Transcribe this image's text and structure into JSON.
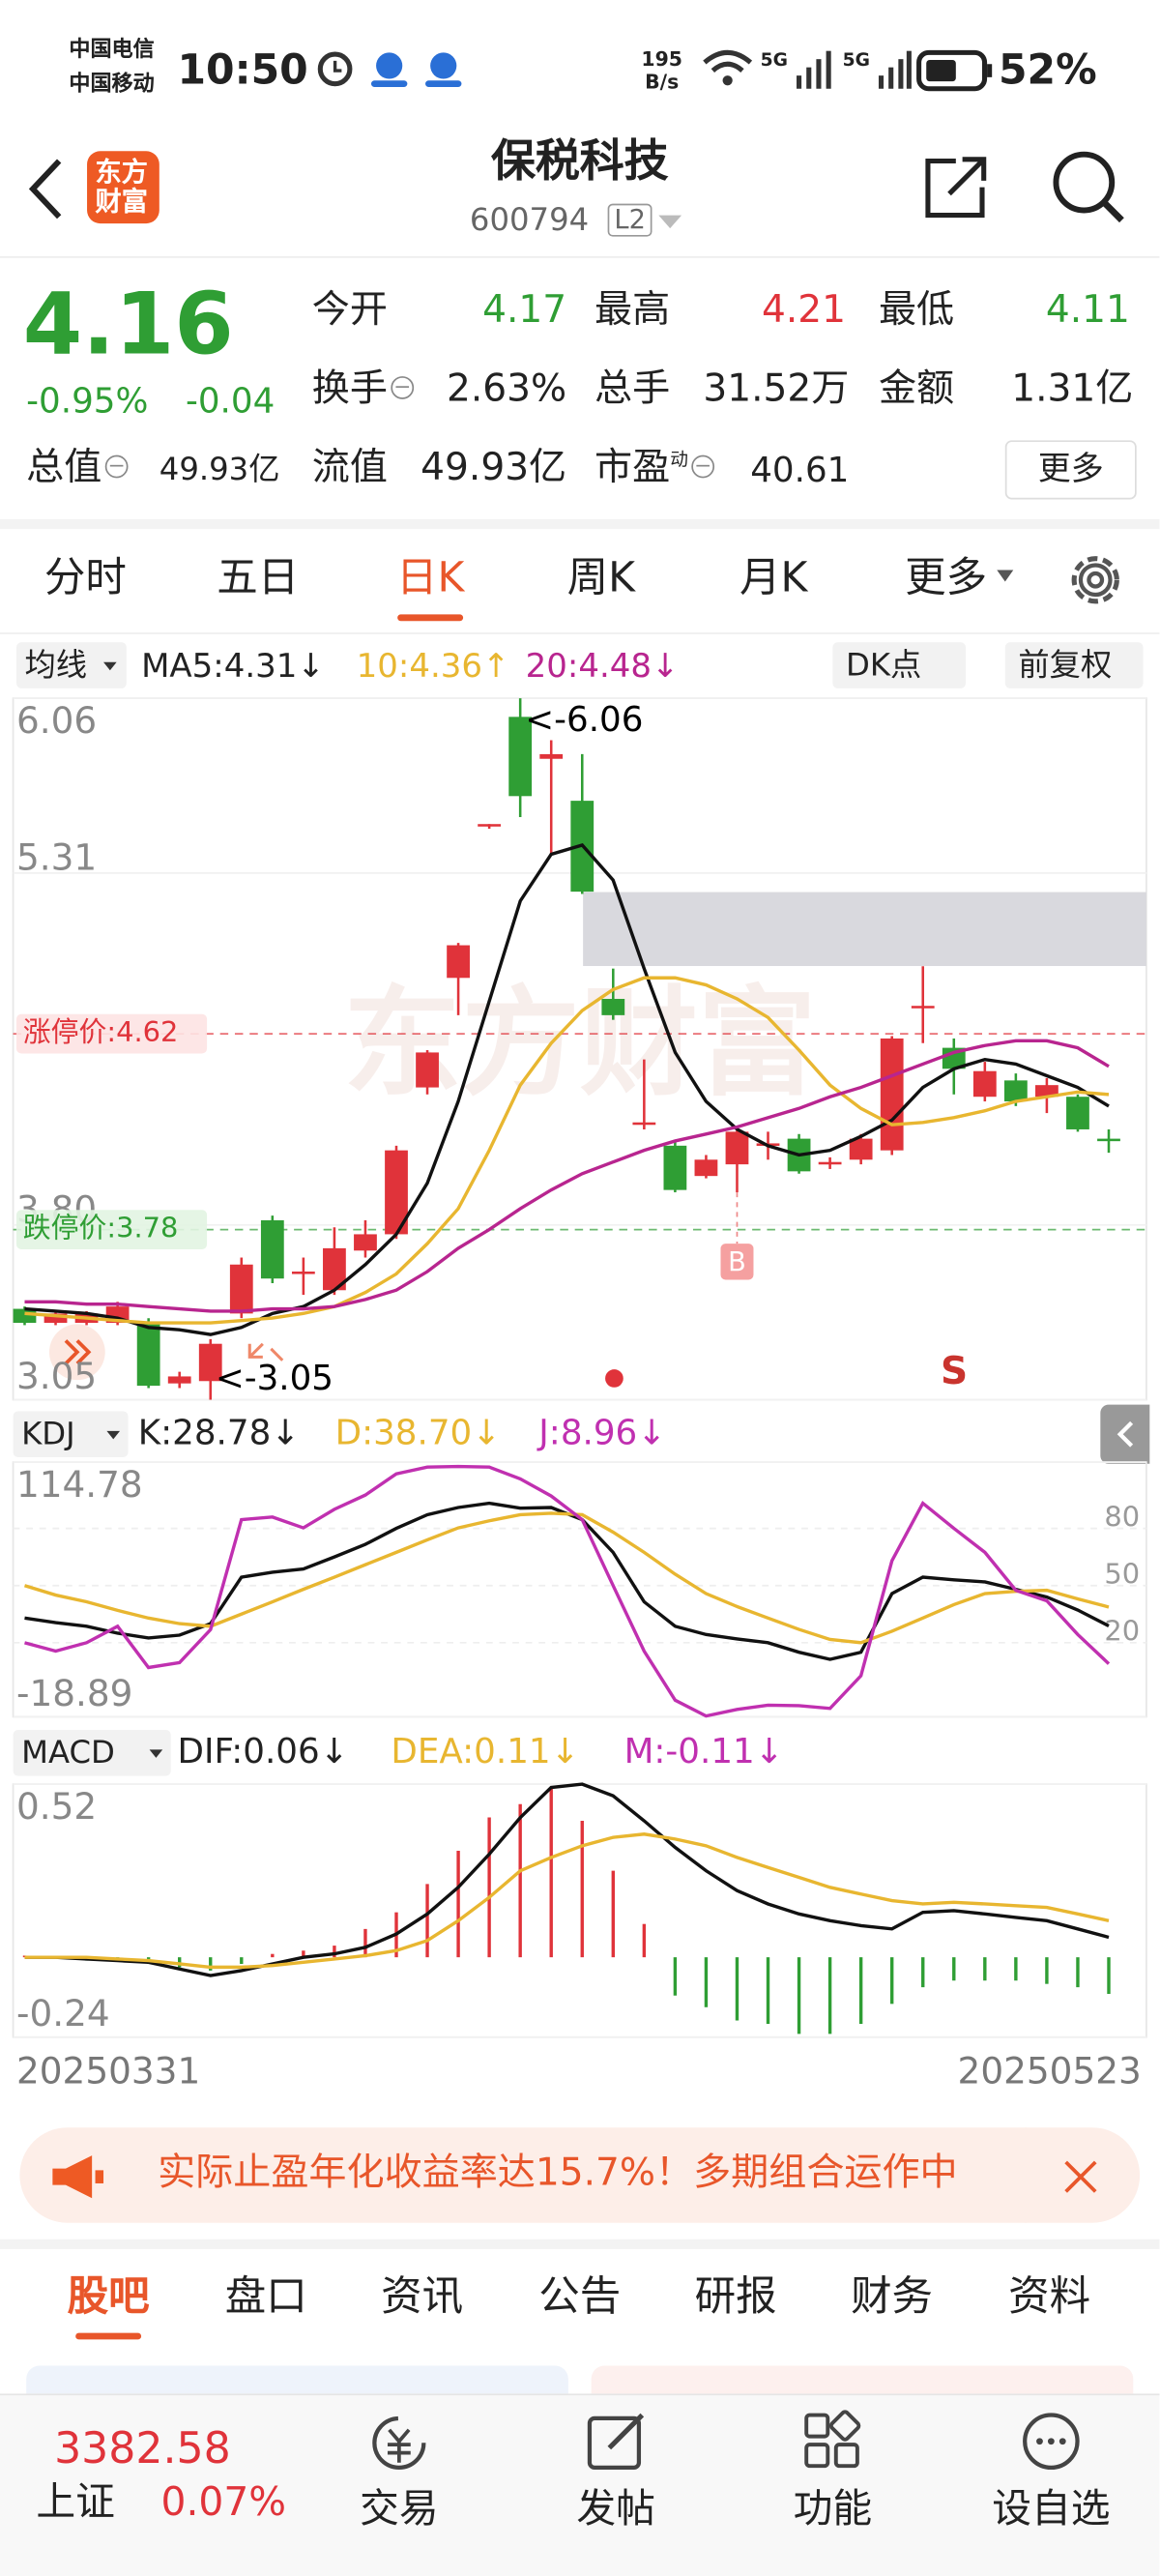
{
  "status_bar": {
    "carrier1": "中国电信",
    "carrier2": "中国移动",
    "time": "10:50",
    "net_speed": "195",
    "net_unit": "B/s",
    "network1": "5G",
    "network2": "5G",
    "battery": "52%"
  },
  "header": {
    "logo_line1": "东方",
    "logo_line2": "财富",
    "title": "保税科技",
    "code": "600794",
    "level": "L2"
  },
  "quote": {
    "price": "4.16",
    "change_pct": "-0.95%",
    "change": "-0.04",
    "open": {
      "label": "今开",
      "value": "4.17"
    },
    "high": {
      "label": "最高",
      "value": "4.21"
    },
    "low": {
      "label": "最低",
      "value": "4.11"
    },
    "turnover": {
      "label": "换手",
      "value": "2.63%"
    },
    "volume": {
      "label": "总手",
      "value": "31.52万"
    },
    "amount": {
      "label": "金额",
      "value": "1.31亿"
    },
    "market_cap": {
      "label": "总值",
      "value": "49.93亿"
    },
    "float_cap": {
      "label": "流值",
      "value": "49.93亿"
    },
    "pe": {
      "label": "市盈",
      "tag": "动",
      "value": "40.61"
    },
    "more": "更多"
  },
  "tabs": [
    "分时",
    "五日",
    "日K",
    "周K",
    "月K",
    "更多"
  ],
  "indicator_bar": {
    "ma_selector": "均线",
    "ma5": "MA5:4.31↓",
    "ma10": "10:4.36↑",
    "ma20": "20:4.48↓",
    "dk": "DK点",
    "adjust": "前复权"
  },
  "kline": {
    "type": "candlestick",
    "ylim": [
      3.05,
      6.06
    ],
    "yticks": [
      6.06,
      5.31,
      {
        "value": 3.8,
        "label": "3.80"
      },
      3.05
    ],
    "watermark": "东方财富",
    "high_label": "<-6.06",
    "low_label": "<-3.05",
    "buy_marker": "B",
    "sell_marker": "S",
    "limit_up": {
      "label": "涨停价:4.62",
      "value": 4.62
    },
    "limit_down": {
      "label": "跌停价:3.78",
      "value": 3.78
    },
    "candles": [
      {
        "open": 3.44,
        "high": 3.45,
        "low": 3.37,
        "close": 3.38
      },
      {
        "open": 3.38,
        "high": 3.43,
        "low": 3.37,
        "close": 3.42
      },
      {
        "open": 3.38,
        "high": 3.43,
        "low": 3.37,
        "close": 3.42
      },
      {
        "open": 3.38,
        "high": 3.47,
        "low": 3.37,
        "close": 3.45
      },
      {
        "open": 3.38,
        "high": 3.4,
        "low": 3.1,
        "close": 3.11
      },
      {
        "open": 3.12,
        "high": 3.17,
        "low": 3.1,
        "close": 3.15
      },
      {
        "open": 3.13,
        "high": 3.31,
        "low": 3.05,
        "close": 3.29
      },
      {
        "open": 3.42,
        "high": 3.66,
        "low": 3.4,
        "close": 3.63
      },
      {
        "open": 3.82,
        "high": 3.84,
        "low": 3.55,
        "close": 3.57
      },
      {
        "open": 3.59,
        "high": 3.66,
        "low": 3.5,
        "close": 3.6
      },
      {
        "open": 3.52,
        "high": 3.79,
        "low": 3.5,
        "close": 3.7
      },
      {
        "open": 3.69,
        "high": 3.82,
        "low": 3.66,
        "close": 3.76
      },
      {
        "open": 3.76,
        "high": 4.14,
        "low": 3.74,
        "close": 4.12
      },
      {
        "open": 4.39,
        "high": 4.55,
        "low": 4.36,
        "close": 4.54
      },
      {
        "open": 4.86,
        "high": 5.01,
        "low": 4.7,
        "close": 5.0
      },
      {
        "open": 5.51,
        "high": 5.52,
        "low": 5.5,
        "close": 5.52
      },
      {
        "open": 5.98,
        "high": 6.06,
        "low": 5.55,
        "close": 5.64
      },
      {
        "open": 5.8,
        "high": 5.88,
        "low": 5.39,
        "close": 5.82
      },
      {
        "open": 5.62,
        "high": 5.82,
        "low": 5.22,
        "close": 5.23
      },
      {
        "open": 4.77,
        "high": 4.9,
        "low": 4.68,
        "close": 4.7
      },
      {
        "open": 4.23,
        "high": 4.51,
        "low": 4.21,
        "close": 4.24
      },
      {
        "open": 4.14,
        "high": 4.16,
        "low": 3.94,
        "close": 3.95
      },
      {
        "open": 4.01,
        "high": 4.1,
        "low": 4.0,
        "close": 4.08
      },
      {
        "open": 4.06,
        "high": 4.22,
        "low": 3.94,
        "close": 4.2
      },
      {
        "open": 4.14,
        "high": 4.2,
        "low": 4.08,
        "close": 4.15
      },
      {
        "open": 4.17,
        "high": 4.19,
        "low": 4.02,
        "close": 4.03
      },
      {
        "open": 4.06,
        "high": 4.09,
        "low": 4.04,
        "close": 4.07
      },
      {
        "open": 4.08,
        "high": 4.19,
        "low": 4.06,
        "close": 4.17
      },
      {
        "open": 4.12,
        "high": 4.61,
        "low": 4.1,
        "close": 4.6
      },
      {
        "open": 4.73,
        "high": 4.91,
        "low": 4.58,
        "close": 4.74
      },
      {
        "open": 4.56,
        "high": 4.6,
        "low": 4.36,
        "close": 4.47
      },
      {
        "open": 4.35,
        "high": 4.5,
        "low": 4.33,
        "close": 4.46
      },
      {
        "open": 4.42,
        "high": 4.45,
        "low": 4.31,
        "close": 4.33
      },
      {
        "open": 4.35,
        "high": 4.43,
        "low": 4.28,
        "close": 4.4
      },
      {
        "open": 4.35,
        "high": 4.36,
        "low": 4.2,
        "close": 4.21
      },
      {
        "open": 4.17,
        "high": 4.21,
        "low": 4.11,
        "close": 4.16
      }
    ],
    "series": [
      {
        "name": "MA5",
        "color": "#111111",
        "values": [
          3.44,
          3.43,
          3.42,
          3.4,
          3.36,
          3.35,
          3.33,
          3.36,
          3.42,
          3.45,
          3.52,
          3.63,
          3.76,
          3.98,
          4.33,
          4.76,
          5.19,
          5.39,
          5.43,
          5.28,
          4.9,
          4.54,
          4.33,
          4.21,
          4.14,
          4.1,
          4.12,
          4.18,
          4.25,
          4.39,
          4.47,
          4.51,
          4.49,
          4.44,
          4.39,
          4.31
        ]
      },
      {
        "name": "MA10",
        "color": "#e8b630",
        "values": [
          3.42,
          3.41,
          3.4,
          3.39,
          3.38,
          3.38,
          3.38,
          3.39,
          3.4,
          3.42,
          3.45,
          3.51,
          3.59,
          3.72,
          3.87,
          4.12,
          4.4,
          4.58,
          4.72,
          4.81,
          4.86,
          4.86,
          4.83,
          4.77,
          4.69,
          4.55,
          4.4,
          4.3,
          4.23,
          4.24,
          4.26,
          4.29,
          4.33,
          4.35,
          4.37,
          4.36
        ]
      },
      {
        "name": "MA20",
        "color": "#b8258f",
        "values": [
          3.47,
          3.47,
          3.46,
          3.46,
          3.45,
          3.44,
          3.43,
          3.43,
          3.44,
          3.44,
          3.45,
          3.48,
          3.52,
          3.6,
          3.7,
          3.78,
          3.87,
          3.95,
          4.02,
          4.07,
          4.12,
          4.16,
          4.19,
          4.22,
          4.26,
          4.3,
          4.35,
          4.39,
          4.44,
          4.49,
          4.54,
          4.57,
          4.59,
          4.59,
          4.56,
          4.48
        ]
      }
    ]
  },
  "kdj": {
    "selector": "KDJ",
    "k_label": "K:28.78↓",
    "d_label": "D:38.70↓",
    "j_label": "J:8.96↓",
    "ylim": [
      -18.89,
      114.78
    ],
    "yticks": [
      114.78,
      -18.89
    ],
    "right_ticks": [
      80,
      50,
      20
    ],
    "series": [
      {
        "name": "K",
        "color": "#111111",
        "values": [
          32.9,
          30.5,
          28.6,
          25,
          22.5,
          24,
          30,
          54.4,
          57,
          58.7,
          65,
          71.7,
          80,
          87.2,
          91,
          93.2,
          90.6,
          91,
          84.6,
          67.4,
          41.5,
          28.6,
          24.3,
          22,
          20,
          15,
          11.3,
          15,
          45.8,
          54.4,
          53,
          51.9,
          48,
          44,
          37.2,
          28.78
        ]
      },
      {
        "name": "D",
        "color": "#e8b630",
        "values": [
          50,
          45,
          41.5,
          37,
          32.9,
          30,
          28.6,
          35,
          41.5,
          48,
          54.4,
          61,
          67.4,
          74,
          80.3,
          84,
          87.2,
          88,
          87.2,
          78,
          67.4,
          56,
          45.8,
          39,
          32.9,
          27,
          21.7,
          20,
          26,
          32.9,
          40,
          45.8,
          47,
          47.5,
          43,
          38.7
        ]
      },
      {
        "name": "J",
        "color": "#c030b0",
        "values": [
          20,
          15.6,
          20,
          28.6,
          7,
          9.6,
          26.9,
          84.6,
          86,
          80.3,
          90,
          97.5,
          108.7,
          112.2,
          112.5,
          112.2,
          106,
          97,
          84.6,
          50,
          15.6,
          -10.2,
          -18.5,
          -15,
          -12.8,
          -13,
          -14.5,
          2.7,
          63,
          93.2,
          80,
          67.4,
          47.5,
          42,
          24.3,
          8.96
        ]
      }
    ]
  },
  "macd": {
    "selector": "MACD",
    "dif_label": "DIF:0.06↓",
    "dea_label": "DEA:0.11↓",
    "m_label": "M:-0.11↓",
    "ylim": [
      -0.24,
      0.52
    ],
    "yticks": [
      0.52,
      -0.24
    ],
    "series": [
      {
        "name": "DIF",
        "color": "#111111",
        "values": [
          0,
          0,
          -0.005,
          -0.01,
          -0.015,
          -0.035,
          -0.055,
          -0.04,
          -0.02,
          0,
          0.01,
          0.03,
          0.07,
          0.13,
          0.21,
          0.31,
          0.42,
          0.51,
          0.52,
          0.485,
          0.41,
          0.33,
          0.26,
          0.2,
          0.16,
          0.13,
          0.11,
          0.095,
          0.085,
          0.135,
          0.14,
          0.13,
          0.12,
          0.11,
          0.085,
          0.06
        ]
      },
      {
        "name": "DEA",
        "color": "#e8b630",
        "values": [
          0,
          0,
          0,
          -0.005,
          -0.01,
          -0.02,
          -0.03,
          -0.03,
          -0.025,
          -0.015,
          -0.005,
          0.005,
          0.02,
          0.05,
          0.11,
          0.18,
          0.26,
          0.3,
          0.335,
          0.36,
          0.37,
          0.355,
          0.335,
          0.3,
          0.27,
          0.24,
          0.21,
          0.19,
          0.17,
          0.16,
          0.165,
          0.16,
          0.155,
          0.15,
          0.13,
          0.11
        ]
      }
    ],
    "bars": [
      0.005,
      0,
      -0.01,
      -0.01,
      -0.02,
      -0.03,
      -0.04,
      -0.02,
      0.01,
      0.02,
      0.035,
      0.085,
      0.135,
      0.22,
      0.32,
      0.42,
      0.46,
      0.51,
      0.41,
      0.26,
      0.1,
      -0.115,
      -0.15,
      -0.19,
      -0.2,
      -0.23,
      -0.23,
      -0.2,
      -0.14,
      -0.09,
      -0.07,
      -0.07,
      -0.07,
      -0.08,
      -0.09,
      -0.11
    ]
  },
  "dates": {
    "start": "20250331",
    "end": "20250523"
  },
  "ad": {
    "text": "实际止盈年化收益率达15.7%！多期组合运作中"
  },
  "bottom_tabs": [
    "股吧",
    "盘口",
    "资讯",
    "公告",
    "研报",
    "财务",
    "资料"
  ],
  "nav": {
    "index_value": "3382.58",
    "index_name": "上证",
    "index_change": "0.07%",
    "items": [
      "交易",
      "发帖",
      "功能",
      "设自选"
    ]
  }
}
